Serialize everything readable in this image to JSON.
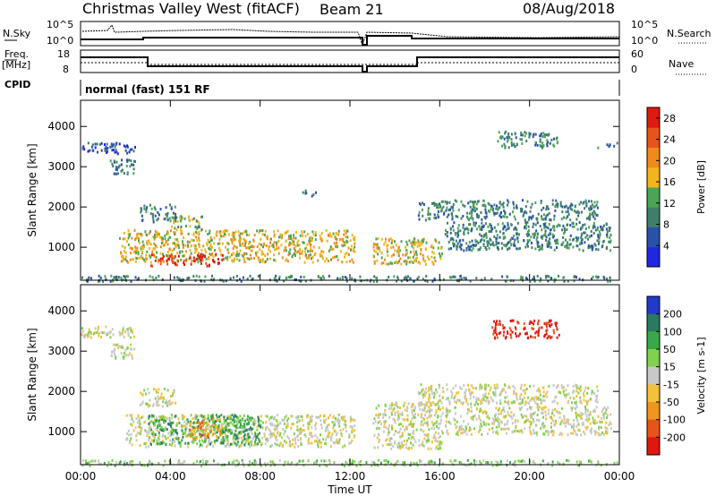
{
  "header": {
    "station": "Christmas Valley West (fitACF)",
    "beam": "Beam 21",
    "date": "08/Aug/2018"
  },
  "panels": {
    "nsky": {
      "label": "N.Sky",
      "ticks_left": [
        "10^5",
        "10^0"
      ],
      "ticks_right": [
        "10^5",
        "10^0"
      ],
      "right_label": "N.Search"
    },
    "freq": {
      "label_line1": "Freq.",
      "label_line2": "[MHz]",
      "ticks_left": [
        "18",
        "8"
      ],
      "ticks_right": [
        "60",
        "0"
      ],
      "right_label": "Nave"
    },
    "cpid": {
      "label": "CPID",
      "value": "normal (fast) 151 RF"
    }
  },
  "chart_data": [
    {
      "type": "heatmap",
      "title": "",
      "ylabel": "Slant Range [km]",
      "xlabel": "",
      "x_ticks": [
        "00:00",
        "04:00",
        "08:00",
        "12:00",
        "16:00",
        "20:00",
        "00:00"
      ],
      "y_ticks": [
        1000,
        2000,
        3000,
        4000
      ],
      "ylim": [
        180,
        4650
      ],
      "colorbar": {
        "label": "Power [dB]",
        "ticks": [
          4,
          8,
          12,
          16,
          20,
          24,
          28
        ],
        "range": [
          0,
          30
        ],
        "colors": [
          "#1f28e0",
          "#2a51a8",
          "#3f7e6b",
          "#4da457",
          "#f2b51d",
          "#f08a1c",
          "#e8531c",
          "#e01a12"
        ]
      },
      "echo_regions": [
        {
          "t": [
            0.0,
            23.9
          ],
          "r": [
            180,
            320
          ],
          "value": 10
        },
        {
          "t": [
            1.7,
            12.2
          ],
          "r": [
            650,
            1450
          ],
          "value": 16
        },
        {
          "t": [
            3.0,
            6.3
          ],
          "r": [
            560,
            860
          ],
          "value": 28
        },
        {
          "t": [
            4.0,
            5.4
          ],
          "r": [
            1400,
            1800
          ],
          "value": 14
        },
        {
          "t": [
            2.6,
            4.2
          ],
          "r": [
            1650,
            2100
          ],
          "value": 10
        },
        {
          "t": [
            0.0,
            2.4
          ],
          "r": [
            3350,
            3650
          ],
          "value": 6
        },
        {
          "t": [
            1.3,
            2.4
          ],
          "r": [
            2850,
            3200
          ],
          "value": 10
        },
        {
          "t": [
            9.8,
            10.5
          ],
          "r": [
            2300,
            2450
          ],
          "value": 8
        },
        {
          "t": [
            13.0,
            16.1
          ],
          "r": [
            600,
            1250
          ],
          "value": 16
        },
        {
          "t": [
            16.2,
            23.6
          ],
          "r": [
            950,
            1650
          ],
          "value": 9
        },
        {
          "t": [
            15.0,
            23.0
          ],
          "r": [
            1700,
            2200
          ],
          "value": 8
        },
        {
          "t": [
            18.5,
            21.3
          ],
          "r": [
            3500,
            3900
          ],
          "value": 10
        },
        {
          "t": [
            23.0,
            23.9
          ],
          "r": [
            3500,
            3620
          ],
          "value": 8
        }
      ]
    },
    {
      "type": "heatmap",
      "title": "",
      "ylabel": "Slant Range [km]",
      "xlabel": "Time UT",
      "x_ticks": [
        "00:00",
        "04:00",
        "08:00",
        "12:00",
        "16:00",
        "20:00",
        "00:00"
      ],
      "y_ticks": [
        1000,
        2000,
        3000,
        4000
      ],
      "ylim": [
        180,
        4650
      ],
      "colorbar": {
        "label": "Velocity [m s-1]",
        "ticks": [
          200,
          100,
          50,
          15,
          -15,
          -50,
          -100,
          -200
        ],
        "colors": [
          "#2339c9",
          "#2a7a63",
          "#3aa84a",
          "#80d14f",
          "#c8c8c8",
          "#f2c23a",
          "#f0961e",
          "#e8531c",
          "#e0170f"
        ]
      },
      "echo_regions": [
        {
          "t": [
            0.0,
            23.9
          ],
          "r": [
            180,
            320
          ],
          "value": 15
        },
        {
          "t": [
            2.0,
            12.2
          ],
          "r": [
            650,
            1450
          ],
          "value": 0
        },
        {
          "t": [
            3.0,
            8.0
          ],
          "r": [
            700,
            1450
          ],
          "value": 50
        },
        {
          "t": [
            4.8,
            6.2
          ],
          "r": [
            850,
            1350
          ],
          "value": -50
        },
        {
          "t": [
            2.6,
            4.2
          ],
          "r": [
            1650,
            2100
          ],
          "value": 0
        },
        {
          "t": [
            0.0,
            2.4
          ],
          "r": [
            3350,
            3650
          ],
          "value": 0
        },
        {
          "t": [
            1.3,
            2.4
          ],
          "r": [
            2850,
            3200
          ],
          "value": 0
        },
        {
          "t": [
            13.0,
            16.1
          ],
          "r": [
            600,
            1750
          ],
          "value": 0
        },
        {
          "t": [
            16.2,
            23.6
          ],
          "r": [
            950,
            1650
          ],
          "value": 0
        },
        {
          "t": [
            15.0,
            23.0
          ],
          "r": [
            1700,
            2200
          ],
          "value": 0
        },
        {
          "t": [
            18.3,
            21.3
          ],
          "r": [
            3350,
            3800
          ],
          "value": -200
        }
      ]
    }
  ]
}
